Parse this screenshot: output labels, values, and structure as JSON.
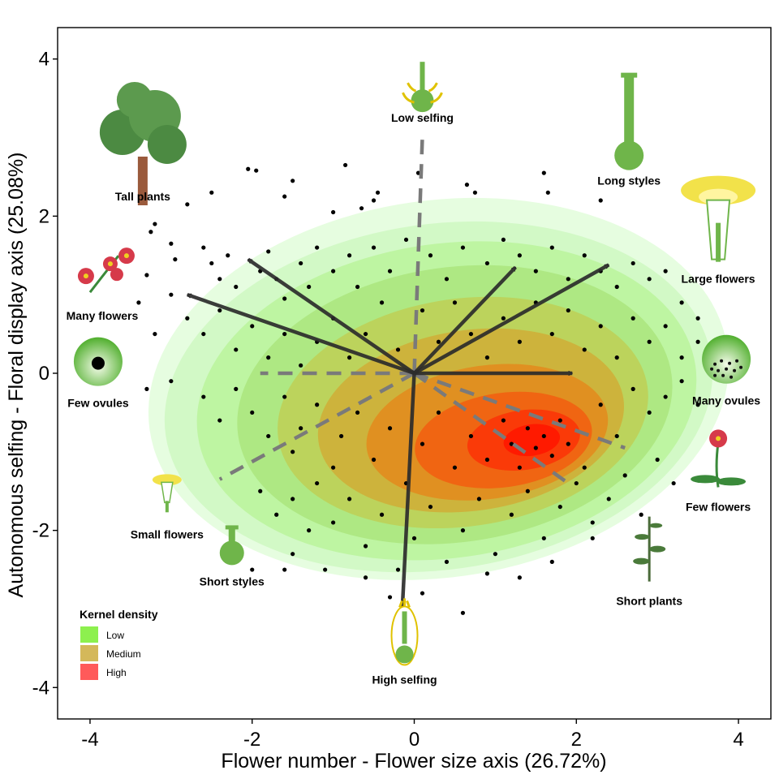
{
  "chart_data": {
    "type": "scatter",
    "xlabel": "Flower number - Flower size axis (26.72%)",
    "ylabel": "Autonomous selfing - Floral display axis (25.08%)",
    "xlim": [
      -4.4,
      4.4
    ],
    "ylim": [
      -4.4,
      4.4
    ],
    "xticks": [
      "-4",
      "-2",
      "0",
      "2",
      "4"
    ],
    "yticks": [
      "-4",
      "-2",
      "0",
      "2",
      "4"
    ],
    "grid": false,
    "legend": {
      "title": "Kernel density",
      "position": "bottom-left",
      "entries": [
        {
          "label": "Low",
          "color": "#8df04e"
        },
        {
          "label": "Medium",
          "color": "#d4b85a"
        },
        {
          "label": "High",
          "color": "#ff5a5a"
        }
      ]
    },
    "density_contours": {
      "levels": [
        {
          "cx": 0.3,
          "cy": -0.2,
          "rx": 3.6,
          "ry": 2.4,
          "color": "#e6fde0"
        },
        {
          "cx": 0.3,
          "cy": -0.3,
          "rx": 3.4,
          "ry": 2.2,
          "color": "#d2f9c6"
        },
        {
          "cx": 0.4,
          "cy": -0.35,
          "rx": 3.1,
          "ry": 2.0,
          "color": "#bef5a2"
        },
        {
          "cx": 0.5,
          "cy": -0.4,
          "rx": 2.7,
          "ry": 1.75,
          "color": "#aee883"
        },
        {
          "cx": 0.6,
          "cy": -0.5,
          "rx": 2.3,
          "ry": 1.45,
          "color": "#bcd35c"
        },
        {
          "cx": 0.7,
          "cy": -0.6,
          "rx": 1.9,
          "ry": 1.15,
          "color": "#cdb33c"
        },
        {
          "cx": 0.9,
          "cy": -0.75,
          "rx": 1.5,
          "ry": 0.85,
          "color": "#e09021"
        },
        {
          "cx": 1.1,
          "cy": -0.85,
          "rx": 1.1,
          "ry": 0.6,
          "color": "#f06512"
        },
        {
          "cx": 1.35,
          "cy": -0.85,
          "rx": 0.7,
          "ry": 0.38,
          "color": "#fa3a08"
        },
        {
          "cx": 1.45,
          "cy": -0.85,
          "rx": 0.35,
          "ry": 0.2,
          "color": "#ff1a00"
        }
      ]
    },
    "solid_vectors": [
      {
        "x": -2.8,
        "y": 1.0
      },
      {
        "x": -2.05,
        "y": 1.45
      },
      {
        "x": 1.25,
        "y": 1.35
      },
      {
        "x": 2.4,
        "y": 1.38
      },
      {
        "x": 1.95,
        "y": 0.0
      },
      {
        "x": -0.15,
        "y": -3.05
      }
    ],
    "dashed_vectors": [
      {
        "x": 0.1,
        "y": 3.0
      },
      {
        "x": -1.9,
        "y": 0.0
      },
      {
        "x": -2.4,
        "y": -1.35
      },
      {
        "x": 2.6,
        "y": -0.95
      },
      {
        "x": 1.9,
        "y": -1.4
      }
    ],
    "trait_labels": [
      {
        "text": "Low selfing",
        "x": 0.1,
        "y": 3.2,
        "icon": "low-selfing-flower-icon"
      },
      {
        "text": "Tall plants",
        "x": -3.35,
        "y": 2.2,
        "icon": "tree-icon"
      },
      {
        "text": "Long styles",
        "x": 2.65,
        "y": 2.4,
        "icon": "long-style-icon"
      },
      {
        "text": "Large flowers",
        "x": 3.75,
        "y": 1.15,
        "icon": "large-flower-icon"
      },
      {
        "text": "Many flowers",
        "x": -3.85,
        "y": 0.68,
        "icon": "many-flowers-icon"
      },
      {
        "text": "Few ovules",
        "x": -3.9,
        "y": -0.43,
        "icon": "few-ovules-icon"
      },
      {
        "text": "Many ovules",
        "x": 3.85,
        "y": -0.4,
        "icon": "many-ovules-icon"
      },
      {
        "text": "Few flowers",
        "x": 3.75,
        "y": -1.75,
        "icon": "few-flowers-icon"
      },
      {
        "text": "Small flowers",
        "x": -3.05,
        "y": -2.1,
        "icon": "small-flower-icon"
      },
      {
        "text": "Short styles",
        "x": -2.25,
        "y": -2.7,
        "icon": "short-style-icon"
      },
      {
        "text": "Short plants",
        "x": 2.9,
        "y": -2.95,
        "icon": "short-plant-icon"
      },
      {
        "text": "High selfing",
        "x": -0.12,
        "y": -3.95,
        "icon": "high-selfing-flower-icon"
      }
    ],
    "points": [
      [
        -2.05,
        2.6
      ],
      [
        -1.95,
        2.58
      ],
      [
        -1.5,
        2.45
      ],
      [
        -1.6,
        2.25
      ],
      [
        -0.85,
        2.65
      ],
      [
        -0.45,
        2.3
      ],
      [
        -0.5,
        2.2
      ],
      [
        -0.65,
        2.1
      ],
      [
        0.65,
        2.4
      ],
      [
        0.75,
        2.3
      ],
      [
        1.6,
        2.55
      ],
      [
        1.65,
        2.3
      ],
      [
        2.3,
        2.2
      ],
      [
        -2.5,
        2.3
      ],
      [
        -2.8,
        2.15
      ],
      [
        -1.0,
        2.05
      ],
      [
        0.05,
        2.55
      ],
      [
        -3.2,
        1.9
      ],
      [
        -3.25,
        1.8
      ],
      [
        -3.0,
        1.65
      ],
      [
        -2.95,
        1.45
      ],
      [
        -2.6,
        1.6
      ],
      [
        -2.5,
        1.4
      ],
      [
        -2.4,
        1.2
      ],
      [
        -2.3,
        1.5
      ],
      [
        -2.2,
        1.1
      ],
      [
        -1.9,
        1.3
      ],
      [
        -1.8,
        1.55
      ],
      [
        -1.7,
        1.2
      ],
      [
        -1.6,
        0.95
      ],
      [
        -1.4,
        1.4
      ],
      [
        -1.3,
        1.1
      ],
      [
        -1.2,
        1.6
      ],
      [
        -1.0,
        1.3
      ],
      [
        -0.8,
        1.5
      ],
      [
        -0.7,
        1.1
      ],
      [
        -0.5,
        1.6
      ],
      [
        -0.3,
        1.3
      ],
      [
        -0.1,
        1.7
      ],
      [
        0.2,
        1.5
      ],
      [
        0.4,
        1.2
      ],
      [
        0.6,
        1.6
      ],
      [
        0.9,
        1.4
      ],
      [
        1.1,
        1.7
      ],
      [
        1.3,
        1.5
      ],
      [
        1.5,
        1.3
      ],
      [
        1.7,
        1.6
      ],
      [
        1.9,
        1.2
      ],
      [
        2.1,
        1.5
      ],
      [
        2.3,
        1.3
      ],
      [
        2.5,
        1.1
      ],
      [
        2.7,
        1.4
      ],
      [
        2.9,
        1.2
      ],
      [
        3.1,
        1.3
      ],
      [
        3.3,
        0.9
      ],
      [
        3.5,
        0.7
      ],
      [
        -3.3,
        1.25
      ],
      [
        -3.0,
        1.0
      ],
      [
        -2.8,
        0.7
      ],
      [
        -2.6,
        0.5
      ],
      [
        -2.4,
        0.8
      ],
      [
        -2.2,
        0.3
      ],
      [
        -2.0,
        0.6
      ],
      [
        -1.8,
        0.2
      ],
      [
        -1.6,
        0.5
      ],
      [
        -1.4,
        0.1
      ],
      [
        -1.2,
        0.4
      ],
      [
        -1.0,
        0.7
      ],
      [
        -0.8,
        0.2
      ],
      [
        -0.6,
        0.5
      ],
      [
        -0.4,
        0.9
      ],
      [
        -0.2,
        0.3
      ],
      [
        0.1,
        0.8
      ],
      [
        0.3,
        0.4
      ],
      [
        0.5,
        0.9
      ],
      [
        0.7,
        0.5
      ],
      [
        0.9,
        0.2
      ],
      [
        1.1,
        0.7
      ],
      [
        1.3,
        0.4
      ],
      [
        1.5,
        0.9
      ],
      [
        1.7,
        0.5
      ],
      [
        1.9,
        0.8
      ],
      [
        2.1,
        0.3
      ],
      [
        2.3,
        0.6
      ],
      [
        2.5,
        0.2
      ],
      [
        2.7,
        0.7
      ],
      [
        2.9,
        0.4
      ],
      [
        3.1,
        0.6
      ],
      [
        3.3,
        0.2
      ],
      [
        3.5,
        0.4
      ],
      [
        -3.2,
        0.5
      ],
      [
        -3.4,
        0.9
      ],
      [
        -3.3,
        -0.2
      ],
      [
        -3.0,
        -0.1
      ],
      [
        -2.6,
        -0.3
      ],
      [
        -2.4,
        -0.6
      ],
      [
        -2.2,
        -0.2
      ],
      [
        -2.0,
        -0.5
      ],
      [
        -1.8,
        -0.8
      ],
      [
        -1.6,
        -0.3
      ],
      [
        -1.5,
        -1.0
      ],
      [
        -1.4,
        -0.7
      ],
      [
        -1.2,
        -0.4
      ],
      [
        -1.0,
        -1.2
      ],
      [
        -0.9,
        -0.8
      ],
      [
        -0.7,
        -0.5
      ],
      [
        -0.5,
        -1.1
      ],
      [
        -0.3,
        -0.7
      ],
      [
        -0.1,
        -1.4
      ],
      [
        0.1,
        -0.9
      ],
      [
        0.3,
        -0.5
      ],
      [
        0.5,
        -1.2
      ],
      [
        0.7,
        -0.8
      ],
      [
        0.9,
        -1.1
      ],
      [
        1.1,
        -0.6
      ],
      [
        1.2,
        -0.9
      ],
      [
        1.3,
        -1.2
      ],
      [
        1.4,
        -0.7
      ],
      [
        1.5,
        -0.95
      ],
      [
        1.6,
        -0.8
      ],
      [
        1.7,
        -1.05
      ],
      [
        1.8,
        -0.6
      ],
      [
        1.9,
        -0.9
      ],
      [
        2.1,
        -1.2
      ],
      [
        2.3,
        -0.4
      ],
      [
        2.5,
        -0.8
      ],
      [
        2.7,
        -0.2
      ],
      [
        2.9,
        -0.5
      ],
      [
        3.1,
        -0.3
      ],
      [
        3.3,
        -0.1
      ],
      [
        3.5,
        -0.4
      ],
      [
        -1.9,
        -1.5
      ],
      [
        -1.7,
        -1.8
      ],
      [
        -1.5,
        -1.6
      ],
      [
        -1.3,
        -2.0
      ],
      [
        -1.2,
        -1.4
      ],
      [
        -1.0,
        -1.9
      ],
      [
        -0.8,
        -1.6
      ],
      [
        -0.6,
        -2.2
      ],
      [
        -0.4,
        -1.8
      ],
      [
        -0.2,
        -2.5
      ],
      [
        0.0,
        -2.1
      ],
      [
        0.2,
        -1.7
      ],
      [
        0.4,
        -2.4
      ],
      [
        0.6,
        -2.0
      ],
      [
        0.8,
        -1.6
      ],
      [
        1.0,
        -2.3
      ],
      [
        1.2,
        -1.8
      ],
      [
        1.4,
        -1.5
      ],
      [
        1.6,
        -2.1
      ],
      [
        1.8,
        -1.7
      ],
      [
        2.0,
        -1.4
      ],
      [
        2.2,
        -1.9
      ],
      [
        2.4,
        -1.6
      ],
      [
        2.6,
        -1.3
      ],
      [
        2.8,
        -1.8
      ],
      [
        3.0,
        -1.1
      ],
      [
        3.2,
        -1.4
      ],
      [
        -1.6,
        -2.5
      ],
      [
        -1.1,
        -2.5
      ],
      [
        -0.6,
        -2.6
      ],
      [
        -0.3,
        -2.85
      ],
      [
        0.1,
        -2.8
      ],
      [
        0.6,
        -3.05
      ],
      [
        0.9,
        -2.55
      ],
      [
        1.3,
        -2.6
      ],
      [
        1.7,
        -2.4
      ],
      [
        2.2,
        -2.1
      ],
      [
        -1.5,
        -2.3
      ],
      [
        -2.0,
        -2.5
      ]
    ]
  }
}
